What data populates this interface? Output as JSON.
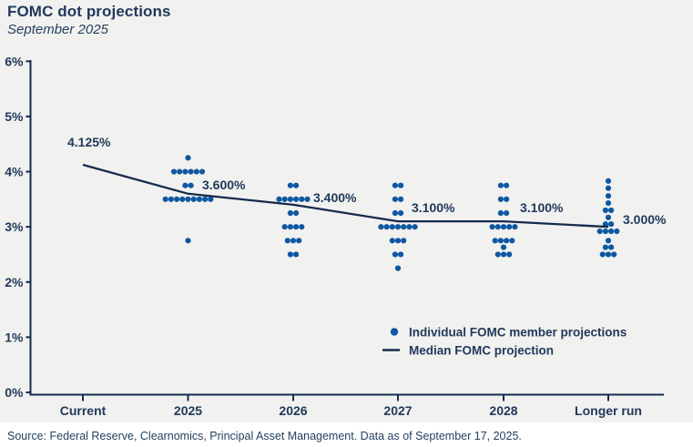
{
  "header": {
    "title": "FOMC dot projections",
    "subtitle": "September 2025"
  },
  "colors": {
    "background": "#f1f1ef",
    "text_navy": "#21395c",
    "median_line": "#152a4e",
    "dot_blue": "#0e57a2",
    "source_strip": "#ffffff"
  },
  "chart_data": {
    "type": "scatter",
    "title": "FOMC dot projections",
    "subtitle": "September 2025",
    "categories": [
      "Current",
      "2025",
      "2026",
      "2027",
      "2028",
      "Longer run"
    ],
    "y_axis": {
      "tick_labels": [
        "0%",
        "1%",
        "2%",
        "3%",
        "4%",
        "5%",
        "6%"
      ],
      "tick_values": [
        0,
        1,
        2,
        3,
        4,
        5,
        6
      ],
      "ylim": [
        0,
        6
      ]
    },
    "grid": "off",
    "median": {
      "name": "Median FOMC projection",
      "values": [
        4.125,
        3.6,
        3.4,
        3.1,
        3.1,
        3.0
      ],
      "labels": [
        "4.125%",
        "3.600%",
        "3.400%",
        "3.100%",
        "3.100%",
        "3.000%"
      ]
    },
    "dots": [
      {
        "category": "Current",
        "stacks": []
      },
      {
        "category": "2025",
        "stacks": [
          {
            "value": 4.25,
            "count": 1
          },
          {
            "value": 4.0,
            "count": 6
          },
          {
            "value": 3.75,
            "count": 2
          },
          {
            "value": 3.5,
            "count": 9
          },
          {
            "value": 2.75,
            "count": 1
          }
        ]
      },
      {
        "category": "2026",
        "stacks": [
          {
            "value": 3.75,
            "count": 2
          },
          {
            "value": 3.5,
            "count": 6
          },
          {
            "value": 3.25,
            "count": 2
          },
          {
            "value": 3.0,
            "count": 4
          },
          {
            "value": 2.75,
            "count": 3
          },
          {
            "value": 2.5,
            "count": 2
          }
        ]
      },
      {
        "category": "2027",
        "stacks": [
          {
            "value": 3.75,
            "count": 2
          },
          {
            "value": 3.5,
            "count": 2
          },
          {
            "value": 3.25,
            "count": 2
          },
          {
            "value": 3.0,
            "count": 7
          },
          {
            "value": 2.75,
            "count": 3
          },
          {
            "value": 2.5,
            "count": 2
          },
          {
            "value": 2.25,
            "count": 1
          }
        ]
      },
      {
        "category": "2028",
        "stacks": [
          {
            "value": 3.75,
            "count": 2
          },
          {
            "value": 3.5,
            "count": 2
          },
          {
            "value": 3.25,
            "count": 2
          },
          {
            "value": 3.0,
            "count": 5
          },
          {
            "value": 2.75,
            "count": 4
          },
          {
            "value": 2.63,
            "count": 1
          },
          {
            "value": 2.5,
            "count": 3
          }
        ]
      },
      {
        "category": "Longer run",
        "stacks": [
          {
            "value": 3.83,
            "count": 1
          },
          {
            "value": 3.7,
            "count": 1
          },
          {
            "value": 3.56,
            "count": 1
          },
          {
            "value": 3.43,
            "count": 1
          },
          {
            "value": 3.3,
            "count": 2
          },
          {
            "value": 3.17,
            "count": 1
          },
          {
            "value": 3.05,
            "count": 2
          },
          {
            "value": 2.92,
            "count": 4
          },
          {
            "value": 2.75,
            "count": 1
          },
          {
            "value": 2.63,
            "count": 2
          },
          {
            "value": 2.5,
            "count": 3
          }
        ]
      }
    ],
    "legend": [
      {
        "marker": "dot",
        "label": "Individual FOMC member projections"
      },
      {
        "marker": "line",
        "label": "Median FOMC projection"
      }
    ],
    "legend_position": "inside lower right"
  },
  "footer": {
    "source": "Source: Federal Reserve, Clearnomics, Principal Asset Management. Data as of September 17, 2025."
  }
}
